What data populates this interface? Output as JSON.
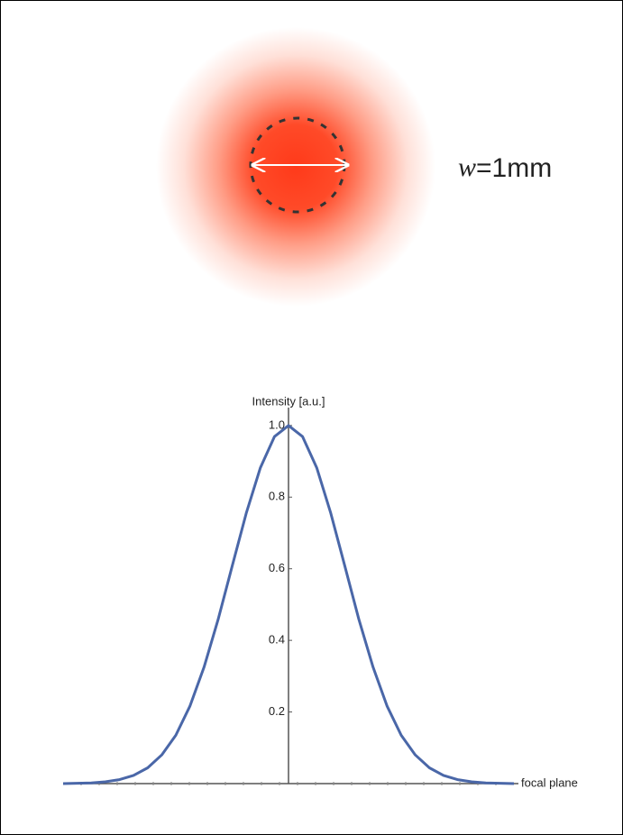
{
  "spot": {
    "variable": "w",
    "value": "=1mm"
  },
  "chart_data": {
    "type": "line",
    "y_label": "Intensity [a.u.]",
    "x_label": "focal plane",
    "x": [
      -4,
      -3.75,
      -3.5,
      -3.25,
      -3,
      -2.75,
      -2.5,
      -2.25,
      -2,
      -1.75,
      -1.5,
      -1.25,
      -1,
      -0.75,
      -0.5,
      -0.25,
      0,
      0.25,
      0.5,
      0.75,
      1,
      1.25,
      1.5,
      1.75,
      2,
      2.25,
      2.5,
      2.75,
      3,
      3.25,
      3.5,
      3.75,
      4
    ],
    "series": [
      {
        "color": "#4a67a8",
        "values": [
          0,
          0.001,
          0.002,
          0.005,
          0.011,
          0.023,
          0.044,
          0.08,
          0.135,
          0.216,
          0.325,
          0.458,
          0.607,
          0.755,
          0.882,
          0.969,
          1,
          0.969,
          0.882,
          0.755,
          0.607,
          0.458,
          0.325,
          0.216,
          0.135,
          0.08,
          0.044,
          0.023,
          0.011,
          0.005,
          0.002,
          0.001,
          0
        ]
      }
    ],
    "xlim": [
      -4,
      4
    ],
    "ylim": [
      0,
      1.05
    ],
    "yticks": [
      0.2,
      0.4,
      0.6,
      0.8,
      {
        "value": 1,
        "label": "1.0"
      }
    ]
  }
}
